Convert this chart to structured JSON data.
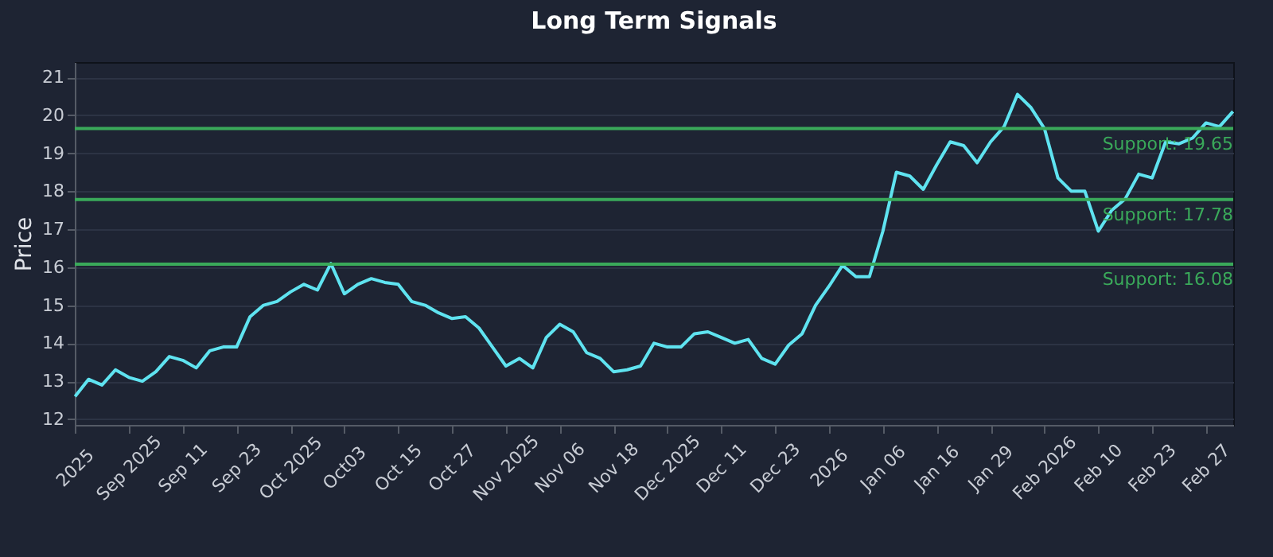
{
  "chart_data": {
    "type": "line",
    "title": "Long Term Signals",
    "ylabel": "Price",
    "categories": [
      "2025",
      null,
      null,
      null,
      "Sep 2025",
      null,
      null,
      null,
      "Sep 11",
      null,
      null,
      null,
      "Sep 23",
      null,
      null,
      null,
      "Oct 2025",
      null,
      null,
      null,
      "Oct03",
      null,
      null,
      null,
      "Oct 15",
      null,
      null,
      null,
      "Oct 27",
      null,
      null,
      null,
      "Nov 2025",
      null,
      null,
      null,
      "Nov 06",
      null,
      null,
      null,
      "Nov 18",
      null,
      null,
      null,
      "Dec 2025",
      null,
      null,
      null,
      "Dec 11",
      null,
      null,
      null,
      "Dec 23",
      null,
      null,
      null,
      "2026",
      null,
      null,
      null,
      "Jan 06",
      null,
      null,
      null,
      "Jan 16",
      null,
      null,
      null,
      "Jan 29",
      null,
      null,
      null,
      "Feb 2026",
      null,
      null,
      null,
      "Feb 10",
      null,
      null,
      null,
      "Feb 23",
      null,
      null,
      null,
      "Feb 27",
      null,
      null
    ],
    "series": [
      {
        "color": "#5fe3f0",
        "values": [
          12.6,
          13.05,
          12.9,
          13.3,
          13.1,
          13.0,
          13.25,
          13.65,
          13.55,
          13.35,
          13.8,
          13.9,
          13.9,
          14.7,
          15.0,
          15.1,
          15.35,
          15.55,
          15.4,
          16.1,
          15.3,
          15.55,
          15.7,
          15.6,
          15.55,
          15.1,
          15.0,
          14.8,
          14.65,
          14.7,
          14.4,
          13.9,
          13.4,
          13.6,
          13.35,
          14.15,
          14.5,
          14.3,
          13.75,
          13.6,
          13.25,
          13.3,
          13.4,
          14.0,
          13.9,
          13.9,
          14.25,
          14.3,
          14.15,
          14.0,
          14.1,
          13.6,
          13.45,
          13.95,
          14.25,
          15.0,
          15.5,
          16.05,
          15.75,
          15.75,
          16.95,
          18.5,
          18.4,
          18.05,
          18.7,
          19.3,
          19.2,
          18.75,
          19.3,
          19.7,
          20.55,
          20.2,
          19.65,
          18.35,
          18.0,
          18.0,
          16.95,
          17.5,
          17.8,
          18.45,
          18.35,
          19.3,
          19.25,
          19.4,
          19.8,
          19.7,
          20.1
        ]
      }
    ],
    "ylim": [
      11.85,
      21.4
    ],
    "yticks": [
      12,
      13,
      14,
      15,
      16,
      17,
      18,
      19,
      20,
      21
    ],
    "grid": "y",
    "ref_lines": [
      {
        "axis": "y",
        "value": 19.65,
        "label": "Support: 19.65",
        "color": "#3aa95a"
      },
      {
        "axis": "y",
        "value": 17.78,
        "label": "Support: 17.78",
        "color": "#3aa95a"
      },
      {
        "axis": "y",
        "value": 16.08,
        "label": "Support: 16.08",
        "color": "#3aa95a"
      }
    ]
  }
}
